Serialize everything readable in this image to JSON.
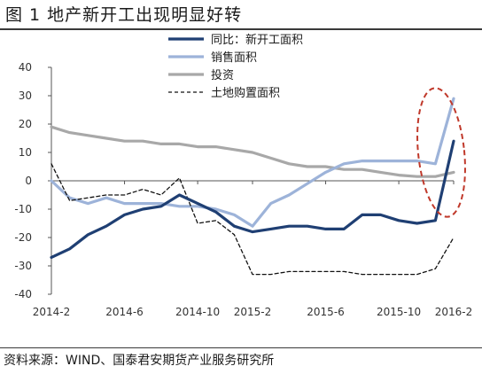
{
  "figure": {
    "title": "图 1   地产新开工出现明显好转",
    "source": "资料来源：WIND、国泰君安期货产业服务研究所"
  },
  "chart_data": {
    "type": "line",
    "title": "",
    "xlabel": "",
    "ylabel": "",
    "ylim": [
      -40,
      40
    ],
    "yticks": [
      -40,
      -30,
      -20,
      -10,
      0,
      10,
      20,
      30,
      40
    ],
    "grid": false,
    "legend_position": "top-right",
    "x": [
      "2014-2",
      "2014-3",
      "2014-4",
      "2014-5",
      "2014-6",
      "2014-7",
      "2014-8",
      "2014-9",
      "2014-10",
      "2014-11",
      "2014-12",
      "2015-2",
      "2015-3",
      "2015-4",
      "2015-5",
      "2015-6",
      "2015-7",
      "2015-8",
      "2015-9",
      "2015-10",
      "2015-11",
      "2015-12",
      "2016-2"
    ],
    "xtick_labels": [
      "2014-2",
      "2014-6",
      "2014-10",
      "2015-2",
      "2015-6",
      "2015-10",
      "2016-2"
    ],
    "series": [
      {
        "name": "同比：新开工面积",
        "color": "#1f3f73",
        "width": 3.2,
        "dash": "",
        "values": [
          -27,
          -24,
          -19,
          -16,
          -12,
          -10,
          -9,
          -5,
          -8,
          -11,
          -16,
          -18,
          -17,
          -16,
          -16,
          -17,
          -17,
          -12,
          -12,
          -14,
          -15,
          -14,
          14
        ]
      },
      {
        "name": "销售面积",
        "color": "#9db3d9",
        "width": 3.2,
        "dash": "",
        "values": [
          0,
          -6,
          -8,
          -6,
          -8,
          -8,
          -8,
          -9,
          -9,
          -10,
          -12,
          -16,
          -8,
          -5,
          -1,
          3,
          6,
          7,
          7,
          7,
          7,
          6,
          29
        ]
      },
      {
        "name": "投资",
        "color": "#a8a8a8",
        "width": 3.2,
        "dash": "",
        "values": [
          19,
          17,
          16,
          15,
          14,
          14,
          13,
          13,
          12,
          12,
          11,
          10,
          8,
          6,
          5,
          5,
          4,
          4,
          3,
          2,
          1.5,
          1.5,
          3
        ]
      },
      {
        "name": "土地购置面积",
        "color": "#111111",
        "width": 1.3,
        "dash": "4,3",
        "values": [
          6,
          -7,
          -6,
          -5,
          -5,
          -3,
          -5,
          1,
          -15,
          -14,
          -19,
          -33,
          -33,
          -32,
          -32,
          -32,
          -32,
          -33,
          -33,
          -33,
          -33,
          -31,
          -20
        ]
      }
    ],
    "annotations": [
      {
        "type": "ellipse",
        "label": "",
        "color": "#c0392b",
        "style": "dashed",
        "around": "2016-2"
      }
    ]
  }
}
